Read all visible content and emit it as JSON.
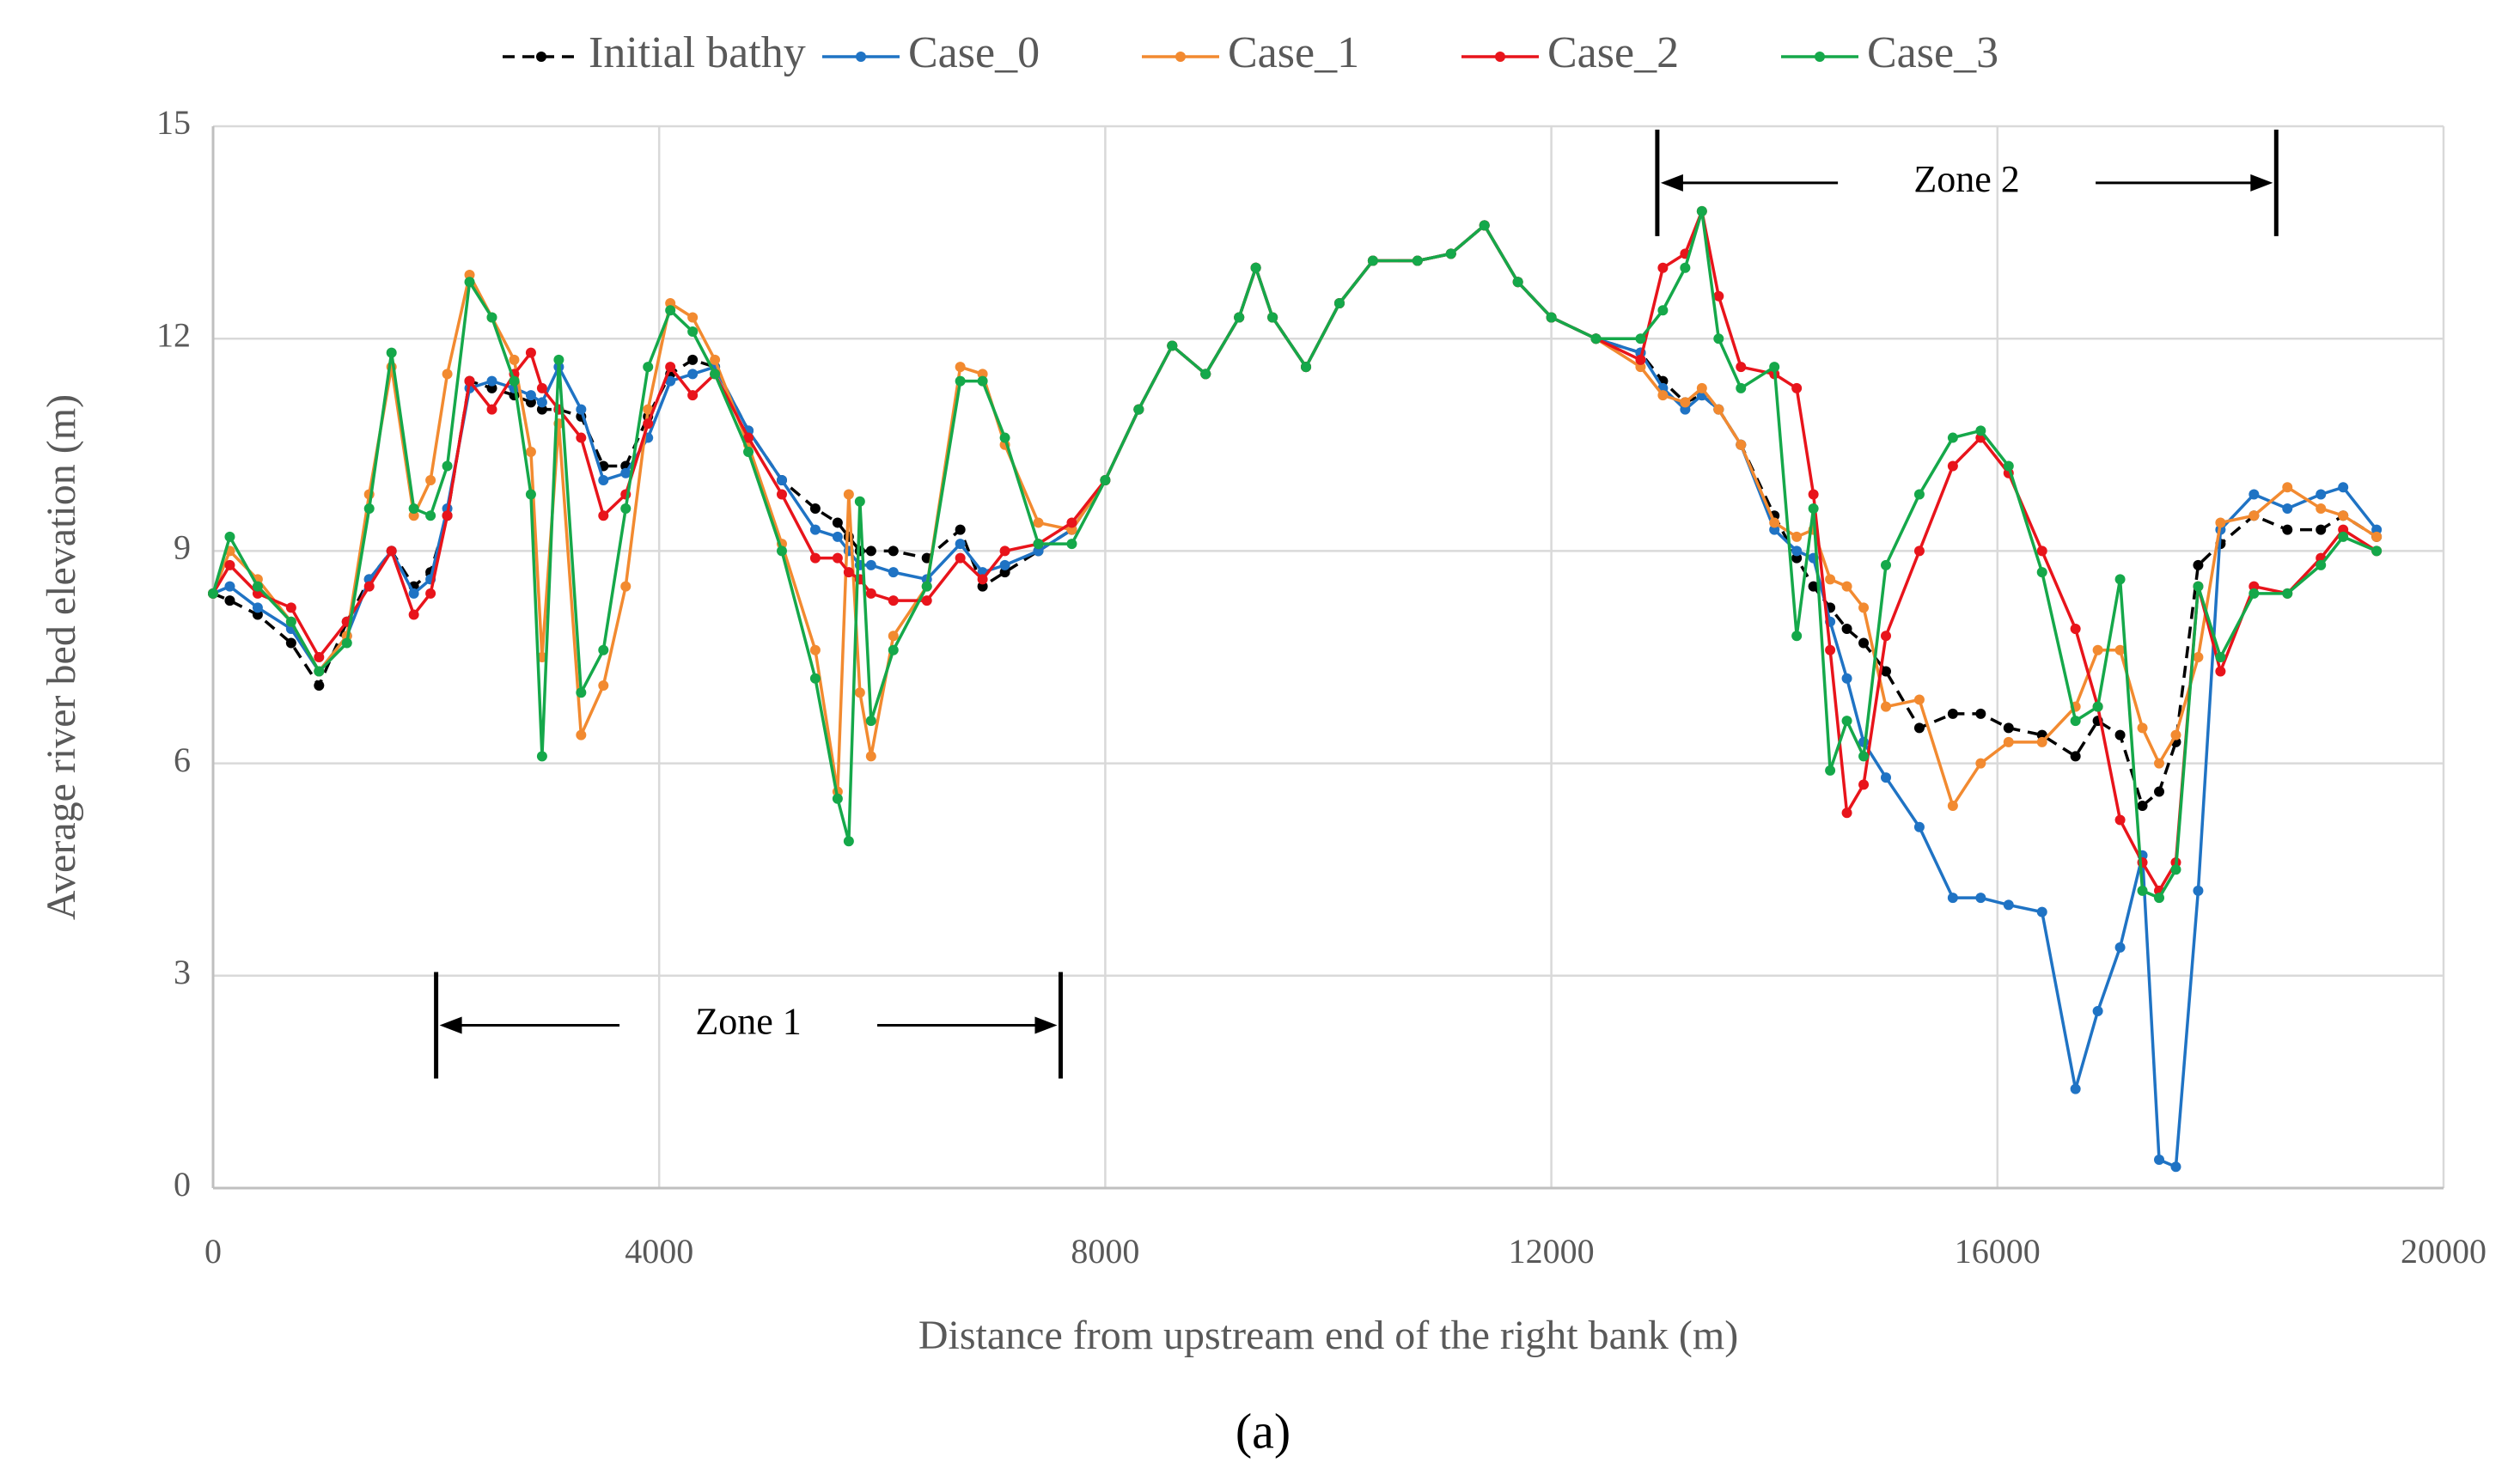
{
  "chart_data": {
    "type": "line",
    "xlabel": "Distance from upstream end of the right bank (m)",
    "ylabel": "Average river bed elevation (m)",
    "caption": "(a)",
    "xlim": [
      0,
      20000
    ],
    "xticks": [
      0,
      4000,
      8000,
      12000,
      16000,
      20000
    ],
    "ylim": [
      0,
      15
    ],
    "yticks": [
      0,
      3,
      6,
      9,
      12,
      15
    ],
    "grid": true,
    "legend": "top",
    "x": [
      0,
      150,
      400,
      700,
      950,
      1200,
      1400,
      1600,
      1800,
      1950,
      2100,
      2300,
      2500,
      2700,
      2850,
      2950,
      3100,
      3300,
      3500,
      3700,
      3900,
      4100,
      4300,
      4500,
      4800,
      5100,
      5400,
      5600,
      5700,
      5800,
      5900,
      6100,
      6400,
      6700,
      6900,
      7100,
      7400,
      7700,
      8000,
      8300,
      8600,
      8900,
      9200,
      9350,
      9500,
      9800,
      10100,
      10400,
      10800,
      11100,
      11400,
      11700,
      12000,
      12400,
      12800,
      13000,
      13200,
      13350,
      13500,
      13700,
      14000,
      14200,
      14350,
      14500,
      14650,
      14800,
      15000,
      15300,
      15600,
      15850,
      16100,
      16400,
      16700,
      16900,
      17100,
      17300,
      17450,
      17600,
      17800,
      18000,
      18300,
      18600,
      18900,
      19100,
      19400
    ],
    "series": [
      {
        "name": "Initial bathy",
        "color": "#000000",
        "dashed": true,
        "values": [
          8.4,
          8.3,
          8.1,
          7.7,
          7.1,
          8.0,
          8.6,
          9.0,
          8.5,
          8.7,
          9.5,
          11.4,
          11.3,
          11.2,
          11.1,
          11.0,
          11.0,
          10.9,
          10.2,
          10.2,
          10.9,
          11.5,
          11.7,
          11.6,
          10.7,
          10.0,
          9.6,
          9.4,
          9.2,
          9.0,
          9.0,
          9.0,
          8.9,
          9.3,
          8.5,
          8.7,
          9.0,
          9.3,
          10.0,
          11.0,
          11.9,
          11.5,
          12.3,
          13.0,
          12.3,
          11.6,
          12.5,
          13.1,
          13.1,
          13.2,
          13.6,
          12.8,
          12.3,
          12.0,
          11.8,
          11.4,
          11.1,
          11.2,
          11.0,
          10.5,
          9.5,
          8.9,
          8.5,
          8.2,
          7.9,
          7.7,
          7.3,
          6.5,
          6.7,
          6.7,
          6.5,
          6.4,
          6.1,
          6.6,
          6.4,
          5.4,
          5.6,
          6.3,
          8.8,
          9.1,
          9.5,
          9.3,
          9.3,
          9.5,
          9.2
        ]
      },
      {
        "name": "Case_0",
        "color": "#1f73c4",
        "values": [
          8.4,
          8.5,
          8.2,
          7.9,
          7.3,
          7.8,
          8.6,
          9.0,
          8.4,
          8.6,
          9.6,
          11.3,
          11.4,
          11.3,
          11.2,
          11.1,
          11.6,
          11.0,
          10.0,
          10.1,
          10.6,
          11.4,
          11.5,
          11.6,
          10.7,
          10.0,
          9.3,
          9.2,
          9.0,
          8.8,
          8.8,
          8.7,
          8.6,
          9.1,
          8.7,
          8.8,
          9.0,
          9.3,
          10.0,
          11.0,
          11.9,
          11.5,
          12.3,
          13.0,
          12.3,
          11.6,
          12.5,
          13.1,
          13.1,
          13.2,
          13.6,
          12.8,
          12.3,
          12.0,
          11.8,
          11.3,
          11.0,
          11.2,
          11.0,
          10.5,
          9.3,
          9.0,
          8.9,
          8.0,
          7.2,
          6.3,
          5.8,
          5.1,
          4.1,
          4.1,
          4.0,
          3.9,
          1.4,
          2.5,
          3.4,
          4.7,
          0.4,
          0.3,
          4.2,
          9.3,
          9.8,
          9.6,
          9.8,
          9.9,
          9.3
        ]
      },
      {
        "name": "Case_1",
        "color": "#f28a30",
        "values": [
          8.4,
          9.0,
          8.6,
          8.0,
          7.3,
          7.8,
          9.8,
          11.6,
          9.5,
          10.0,
          11.5,
          12.9,
          12.3,
          11.7,
          10.4,
          7.5,
          10.8,
          6.4,
          7.1,
          8.5,
          11.0,
          12.5,
          12.3,
          11.7,
          10.5,
          9.1,
          7.6,
          5.6,
          9.8,
          7.0,
          6.1,
          7.8,
          8.5,
          11.6,
          11.5,
          10.5,
          9.4,
          9.3,
          10.0,
          11.0,
          11.9,
          11.5,
          12.3,
          13.0,
          12.3,
          11.6,
          12.5,
          13.1,
          13.1,
          13.2,
          13.6,
          12.8,
          12.3,
          12.0,
          11.6,
          11.2,
          11.1,
          11.3,
          11.0,
          10.5,
          9.4,
          9.2,
          9.3,
          8.6,
          8.5,
          8.2,
          6.8,
          6.9,
          5.4,
          6.0,
          6.3,
          6.3,
          6.8,
          7.6,
          7.6,
          6.5,
          6.0,
          6.4,
          7.5,
          9.4,
          9.5,
          9.9,
          9.6,
          9.5,
          9.2
        ]
      },
      {
        "name": "Case_2",
        "color": "#e8141b",
        "values": [
          8.4,
          8.8,
          8.4,
          8.2,
          7.5,
          8.0,
          8.5,
          9.0,
          8.1,
          8.4,
          9.5,
          11.4,
          11.0,
          11.5,
          11.8,
          11.3,
          11.0,
          10.6,
          9.5,
          9.8,
          10.8,
          11.6,
          11.2,
          11.5,
          10.6,
          9.8,
          8.9,
          8.9,
          8.7,
          8.6,
          8.4,
          8.3,
          8.3,
          8.9,
          8.6,
          9.0,
          9.1,
          9.4,
          10.0,
          11.0,
          11.9,
          11.5,
          12.3,
          13.0,
          12.3,
          11.6,
          12.5,
          13.1,
          13.1,
          13.2,
          13.6,
          12.8,
          12.3,
          12.0,
          11.7,
          13.0,
          13.2,
          13.8,
          12.6,
          11.6,
          11.5,
          11.3,
          9.8,
          7.6,
          5.3,
          5.7,
          7.8,
          9.0,
          10.2,
          10.6,
          10.1,
          9.0,
          7.9,
          6.8,
          5.2,
          4.6,
          4.2,
          4.6,
          8.5,
          7.3,
          8.5,
          8.4,
          8.9,
          9.3,
          9.0
        ]
      },
      {
        "name": "Case_3",
        "color": "#15a84a",
        "values": [
          8.4,
          9.2,
          8.5,
          8.0,
          7.3,
          7.7,
          9.6,
          11.8,
          9.6,
          9.5,
          10.2,
          12.8,
          12.3,
          11.4,
          9.8,
          6.1,
          11.7,
          7.0,
          7.6,
          9.6,
          11.6,
          12.4,
          12.1,
          11.5,
          10.4,
          9.0,
          7.2,
          5.5,
          4.9,
          9.7,
          6.6,
          7.6,
          8.5,
          11.4,
          11.4,
          10.6,
          9.1,
          9.1,
          10.0,
          11.0,
          11.9,
          11.5,
          12.3,
          13.0,
          12.3,
          11.6,
          12.5,
          13.1,
          13.1,
          13.2,
          13.6,
          12.8,
          12.3,
          12.0,
          12.0,
          12.4,
          13.0,
          13.8,
          12.0,
          11.3,
          11.6,
          7.8,
          9.6,
          5.9,
          6.6,
          6.1,
          8.8,
          9.8,
          10.6,
          10.7,
          10.2,
          8.7,
          6.6,
          6.8,
          8.6,
          4.2,
          4.1,
          4.5,
          8.5,
          7.5,
          8.4,
          8.4,
          8.8,
          9.2,
          9.0
        ]
      }
    ],
    "zones": [
      {
        "label": "Zone 1",
        "x": [
          2000,
          7600
        ],
        "y": 2.3
      },
      {
        "label": "Zone 2",
        "x": [
          12950,
          18500
        ],
        "y": 14.2
      }
    ]
  }
}
